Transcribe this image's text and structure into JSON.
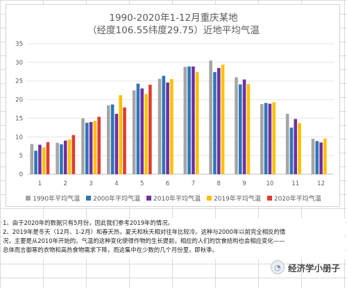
{
  "chart_data": {
    "type": "bar",
    "title_line1": "1990-2020年1-12月重庆某地",
    "title_line2": "（经度106.55纬度29.75）近地平均气温",
    "categories": [
      "1",
      "2",
      "3",
      "4",
      "5",
      "6",
      "7",
      "8",
      "9",
      "10",
      "11",
      "12"
    ],
    "ylim": [
      0,
      35
    ],
    "yticks": [
      0,
      5,
      10,
      15,
      20,
      25,
      30,
      35
    ],
    "grid": true,
    "legend_position": "bottom",
    "series": [
      {
        "name": "1990年平均气温",
        "color": "#a5a5a5",
        "values": [
          8.1,
          8.4,
          15.0,
          18.5,
          22.5,
          25.6,
          28.8,
          30.5,
          26.0,
          18.8,
          16.2,
          9.5
        ]
      },
      {
        "name": "2000年平均气温",
        "color": "#2e75b6",
        "values": [
          6.3,
          8.0,
          13.8,
          18.7,
          24.3,
          26.4,
          28.9,
          27.4,
          24.1,
          19.1,
          12.5,
          8.9
        ]
      },
      {
        "name": "2010年平均气温",
        "color": "#7030a0",
        "values": [
          7.9,
          9.0,
          14.0,
          16.2,
          23.0,
          24.6,
          28.9,
          28.5,
          25.4,
          18.9,
          14.8,
          8.5
        ]
      },
      {
        "name": "2019年平均气温",
        "color": "#ffc000",
        "values": [
          7.2,
          9.3,
          14.3,
          21.2,
          21.5,
          25.5,
          27.4,
          29.4,
          24.2,
          19.3,
          13.7,
          9.6
        ]
      },
      {
        "name": "2020年平均气温",
        "color": "#e03c31",
        "values": [
          8.6,
          10.5,
          15.4,
          17.9,
          24.0,
          null,
          null,
          null,
          null,
          null,
          null,
          null
        ]
      }
    ]
  },
  "notes": [
    "1、由于2020年的数据只有5月份，因此我们参考2019年的情况。",
    "2、2019年是冬天（12月、1-2月）和春天热，夏天和秋天相对往年比较冷。这种与2000年以前完全相反的情",
    "况，主要是从2010年开始的。气温的这种变化使得作物的生长提前，相应的人们的饮食结构也会相应变化——",
    "总体而言御寒的衣物和高热食物需求下降，而这集中在少数的几个月份里，即秋季。"
  ],
  "watermark": {
    "text": "经济学小册子",
    "icon": "circle-logo-icon"
  }
}
